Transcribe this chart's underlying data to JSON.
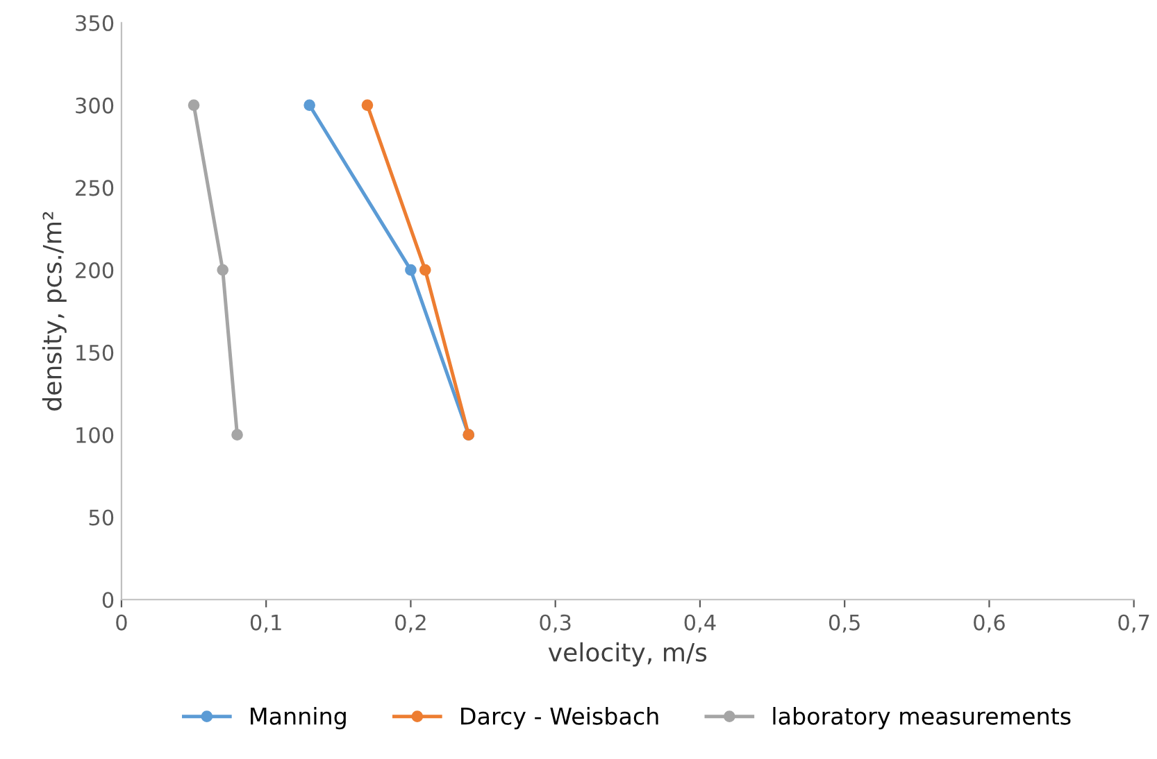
{
  "chart_data": {
    "type": "line",
    "xlabel": "velocity, m/s",
    "ylabel": "density, pcs./m²",
    "xlim": [
      0,
      0.7
    ],
    "xticks": [
      0,
      {
        "value": 0.1,
        "label": "0,1"
      },
      {
        "value": 0.2,
        "label": "0,2"
      },
      {
        "value": 0.3,
        "label": "0,3"
      },
      {
        "value": 0.4,
        "label": "0,4"
      },
      {
        "value": 0.5,
        "label": "0,5"
      },
      {
        "value": 0.6,
        "label": "0,6"
      },
      {
        "value": 0.7,
        "label": "0,7"
      }
    ],
    "ylim": [
      0,
      350
    ],
    "yticks": [
      0,
      50,
      100,
      150,
      200,
      250,
      300,
      350
    ],
    "grid": false,
    "legend": "bottom",
    "marker": "circle",
    "line_style": "solid",
    "series": [
      {
        "name": "Manning",
        "color": "#5b9bd5",
        "x": [
          0.24,
          0.2,
          0.13
        ],
        "values": [
          100,
          200,
          300
        ]
      },
      {
        "name": "Darcy - Weisbach",
        "color": "#ed7d31",
        "x": [
          0.24,
          0.21,
          0.17
        ],
        "values": [
          100,
          200,
          300
        ]
      },
      {
        "name": "laboratory measurements",
        "color": "#a5a5a5",
        "x": [
          0.08,
          0.07,
          0.05
        ],
        "values": [
          100,
          200,
          300
        ]
      }
    ]
  }
}
